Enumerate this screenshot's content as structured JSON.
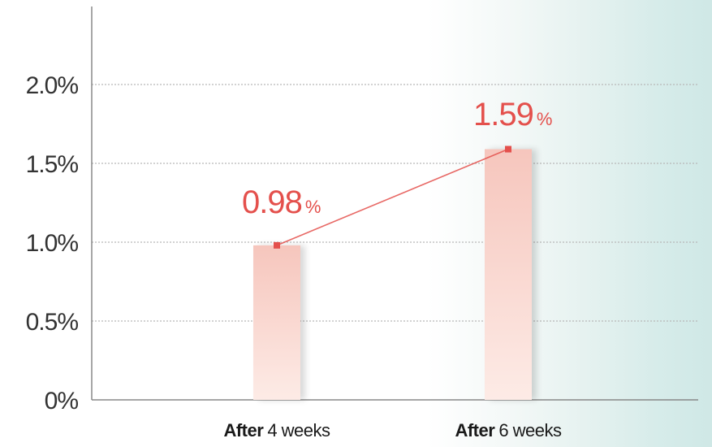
{
  "chart_data": {
    "type": "bar",
    "categories": [
      {
        "bold": "After",
        "rest": "4 weeks"
      },
      {
        "bold": "After",
        "rest": "6 weeks"
      }
    ],
    "values": [
      0.98,
      1.59
    ],
    "data_labels": [
      {
        "number": "0.98",
        "unit": "%"
      },
      {
        "number": "1.59",
        "unit": "%"
      }
    ],
    "y_ticks": [
      "0%",
      "0.5%",
      "1.0%",
      "1.5%",
      "2.0%"
    ],
    "ylim": [
      0,
      2.0
    ],
    "y_tick_values": [
      0,
      0.5,
      1.0,
      1.5,
      2.0
    ],
    "grid": true,
    "connecting_line": true,
    "colors": {
      "accent": "#e4504c",
      "bar_top": "#f6c6bd",
      "bar_bottom": "#fde9e4",
      "grid": "#b8b8b8",
      "axis": "#888888"
    }
  }
}
